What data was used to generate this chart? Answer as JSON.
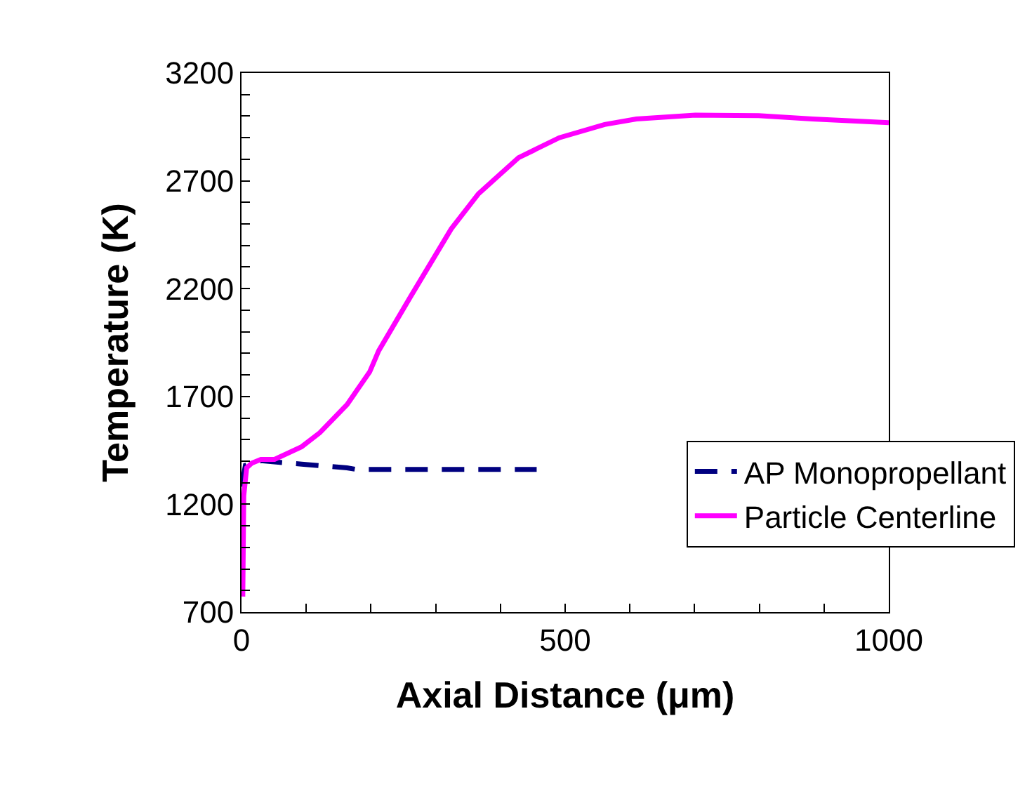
{
  "chart_data": {
    "type": "line",
    "xlabel": "Axial Distance (μm)",
    "ylabel": "Temperature (K)",
    "xlim": [
      0,
      1000
    ],
    "ylim": [
      700,
      3200
    ],
    "xticks": [
      0,
      {
        "value": 100,
        "label": null
      },
      {
        "value": 200,
        "label": null
      },
      {
        "value": 300,
        "label": null
      },
      {
        "value": 400,
        "label": null
      },
      500,
      {
        "value": 600,
        "label": null
      },
      {
        "value": 700,
        "label": null
      },
      {
        "value": 800,
        "label": null
      },
      {
        "value": 900,
        "label": null
      },
      1000
    ],
    "yticks": [
      700,
      {
        "value": 800,
        "label": null
      },
      {
        "value": 900,
        "label": null
      },
      {
        "value": 1000,
        "label": null
      },
      {
        "value": 1100,
        "label": null
      },
      1200,
      {
        "value": 1300,
        "label": null
      },
      {
        "value": 1400,
        "label": null
      },
      {
        "value": 1500,
        "label": null
      },
      {
        "value": 1600,
        "label": null
      },
      1700,
      {
        "value": 1800,
        "label": null
      },
      {
        "value": 1900,
        "label": null
      },
      {
        "value": 2000,
        "label": null
      },
      {
        "value": 2100,
        "label": null
      },
      2200,
      {
        "value": 2300,
        "label": null
      },
      {
        "value": 2400,
        "label": null
      },
      {
        "value": 2500,
        "label": null
      },
      {
        "value": 2600,
        "label": null
      },
      2700,
      {
        "value": 2800,
        "label": null
      },
      {
        "value": 2900,
        "label": null
      },
      {
        "value": 3000,
        "label": null
      },
      {
        "value": 3100,
        "label": null
      },
      3200
    ],
    "grid": false,
    "legend": "bottom right",
    "marker": "none",
    "series": [
      {
        "name": "AP Monopropellant",
        "color": "#000080",
        "line_style": "dashed",
        "x": [
          0,
          6,
          30,
          93,
          163,
          177,
          300,
          456
        ],
        "values": [
          1282,
          1380,
          1402,
          1386,
          1369,
          1362,
          1362,
          1362
        ]
      },
      {
        "name": "Particle Centerline",
        "color": "#ff00ff",
        "line_style": "solid",
        "x": [
          2,
          3.5,
          8,
          16,
          30,
          51,
          93,
          121,
          163,
          198,
          212,
          261,
          324,
          366,
          428,
          491,
          561,
          610,
          701,
          799,
          882,
          1000
        ],
        "values": [
          772,
          1239,
          1369,
          1391,
          1408,
          1408,
          1467,
          1532,
          1662,
          1814,
          1912,
          2162,
          2477,
          2640,
          2807,
          2900,
          2961,
          2987,
          3005,
          3002,
          2987,
          2970
        ]
      }
    ]
  }
}
